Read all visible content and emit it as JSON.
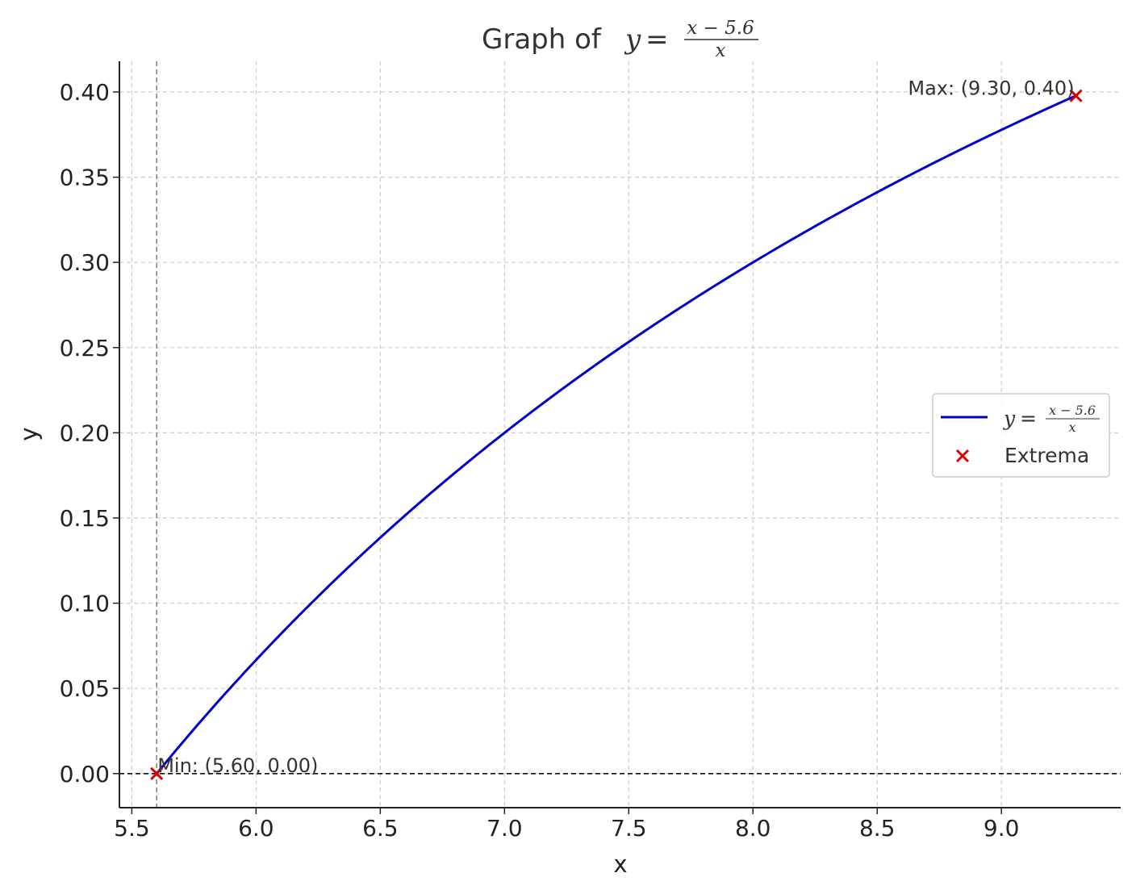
{
  "chart_data": {
    "type": "line",
    "title": {
      "prefix": "Graph of",
      "lhs": "y",
      "eq": "=",
      "numerator": "x − 5.6",
      "denominator": "x"
    },
    "xlabel": "x",
    "ylabel": "y",
    "xlim": [
      5.45,
      9.48
    ],
    "ylim": [
      -0.02,
      0.418
    ],
    "xticks": [
      "5.5",
      "6.0",
      "6.5",
      "7.0",
      "7.5",
      "8.0",
      "8.5",
      "9.0"
    ],
    "yticks": [
      "0.00",
      "0.05",
      "0.10",
      "0.15",
      "0.20",
      "0.25",
      "0.30",
      "0.35",
      "0.40"
    ],
    "xtick_values": [
      5.5,
      6.0,
      6.5,
      7.0,
      7.5,
      8.0,
      8.5,
      9.0
    ],
    "ytick_values": [
      0.0,
      0.05,
      0.1,
      0.15,
      0.2,
      0.25,
      0.3,
      0.35,
      0.4
    ],
    "grid": true,
    "series": [
      {
        "name": "y = (x − 5.6) / x",
        "function": "(x - 5.6) / x",
        "x_range": [
          5.6,
          9.3
        ],
        "color": "#0000cc",
        "points": [
          [
            5.6,
            0.0
          ],
          [
            6.0,
            0.0667
          ],
          [
            6.5,
            0.1385
          ],
          [
            7.0,
            0.2
          ],
          [
            7.5,
            0.2533
          ],
          [
            8.0,
            0.3
          ],
          [
            8.5,
            0.3412
          ],
          [
            9.0,
            0.3778
          ],
          [
            9.3,
            0.3978
          ]
        ]
      }
    ],
    "extrema": {
      "name": "Extrema",
      "color": "#dd0000",
      "points": [
        {
          "x": 5.6,
          "y": 0.0,
          "label": "Min: (5.60, 0.00)"
        },
        {
          "x": 9.3,
          "y": 0.3978,
          "label": "Max: (9.30, 0.40)"
        }
      ]
    },
    "reference_lines": {
      "vertical_x": 5.6,
      "horizontal_y": 0.0
    },
    "legend": {
      "placement": "center-right",
      "entries": [
        {
          "lhs": "y",
          "eq": "=",
          "numerator": "x − 5.6",
          "denominator": "x"
        },
        {
          "label": "Extrema"
        }
      ]
    }
  }
}
